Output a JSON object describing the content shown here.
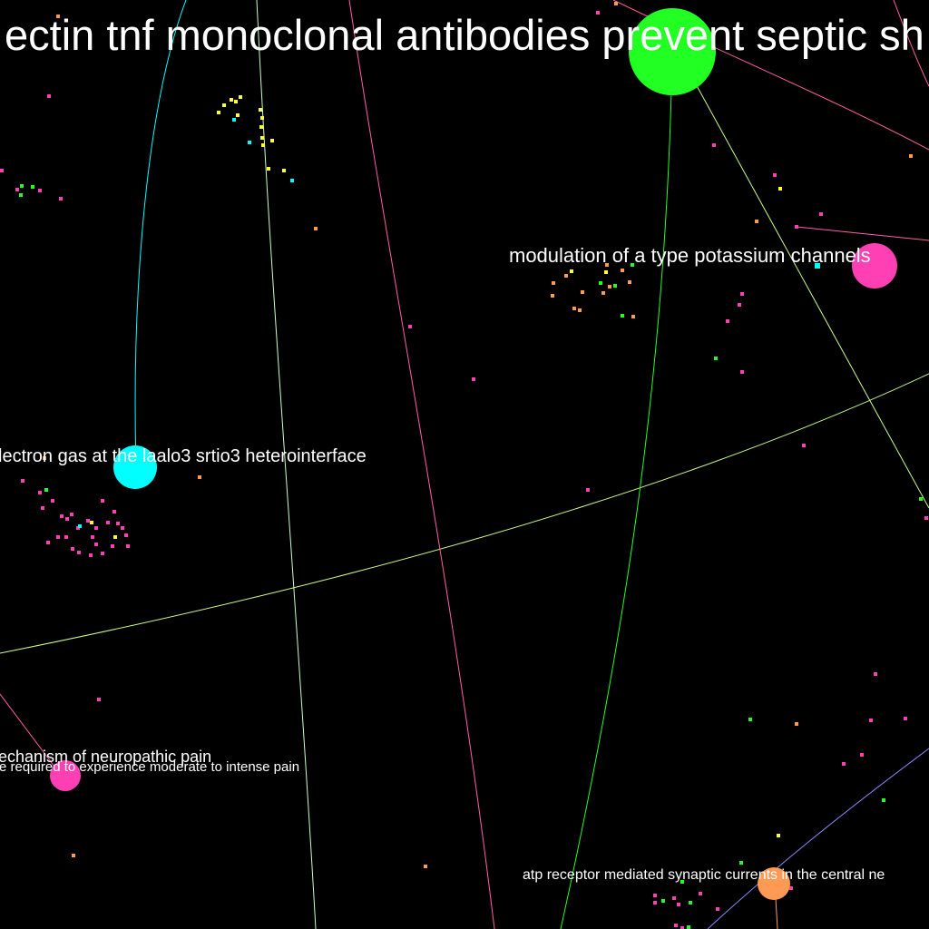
{
  "graph": {
    "background": "#000000",
    "node_labels": {
      "green_hub": "ectin tnf monoclonal antibodies prevent septic sh",
      "magenta_hub": "modulation of a type potassium channels",
      "cyan_hub": "lectron gas at the laalo3 srtio3 heterointerface",
      "magenta_small_a": "echanism of neuropathic pain",
      "magenta_small_b": "re required to experience moderate to intense pain",
      "orange_hub": "atp receptor mediated synaptic currents in the central ne"
    },
    "colors": {
      "green": "#22ff22",
      "magenta": "#ff3fb4",
      "cyan": "#00ffff",
      "orange": "#ff9a55",
      "yellow": "#ffff33",
      "lime_edge": "#ccff88",
      "pink_edge": "#ff5fa8",
      "periwinkle_edge": "#8c8cff"
    }
  }
}
